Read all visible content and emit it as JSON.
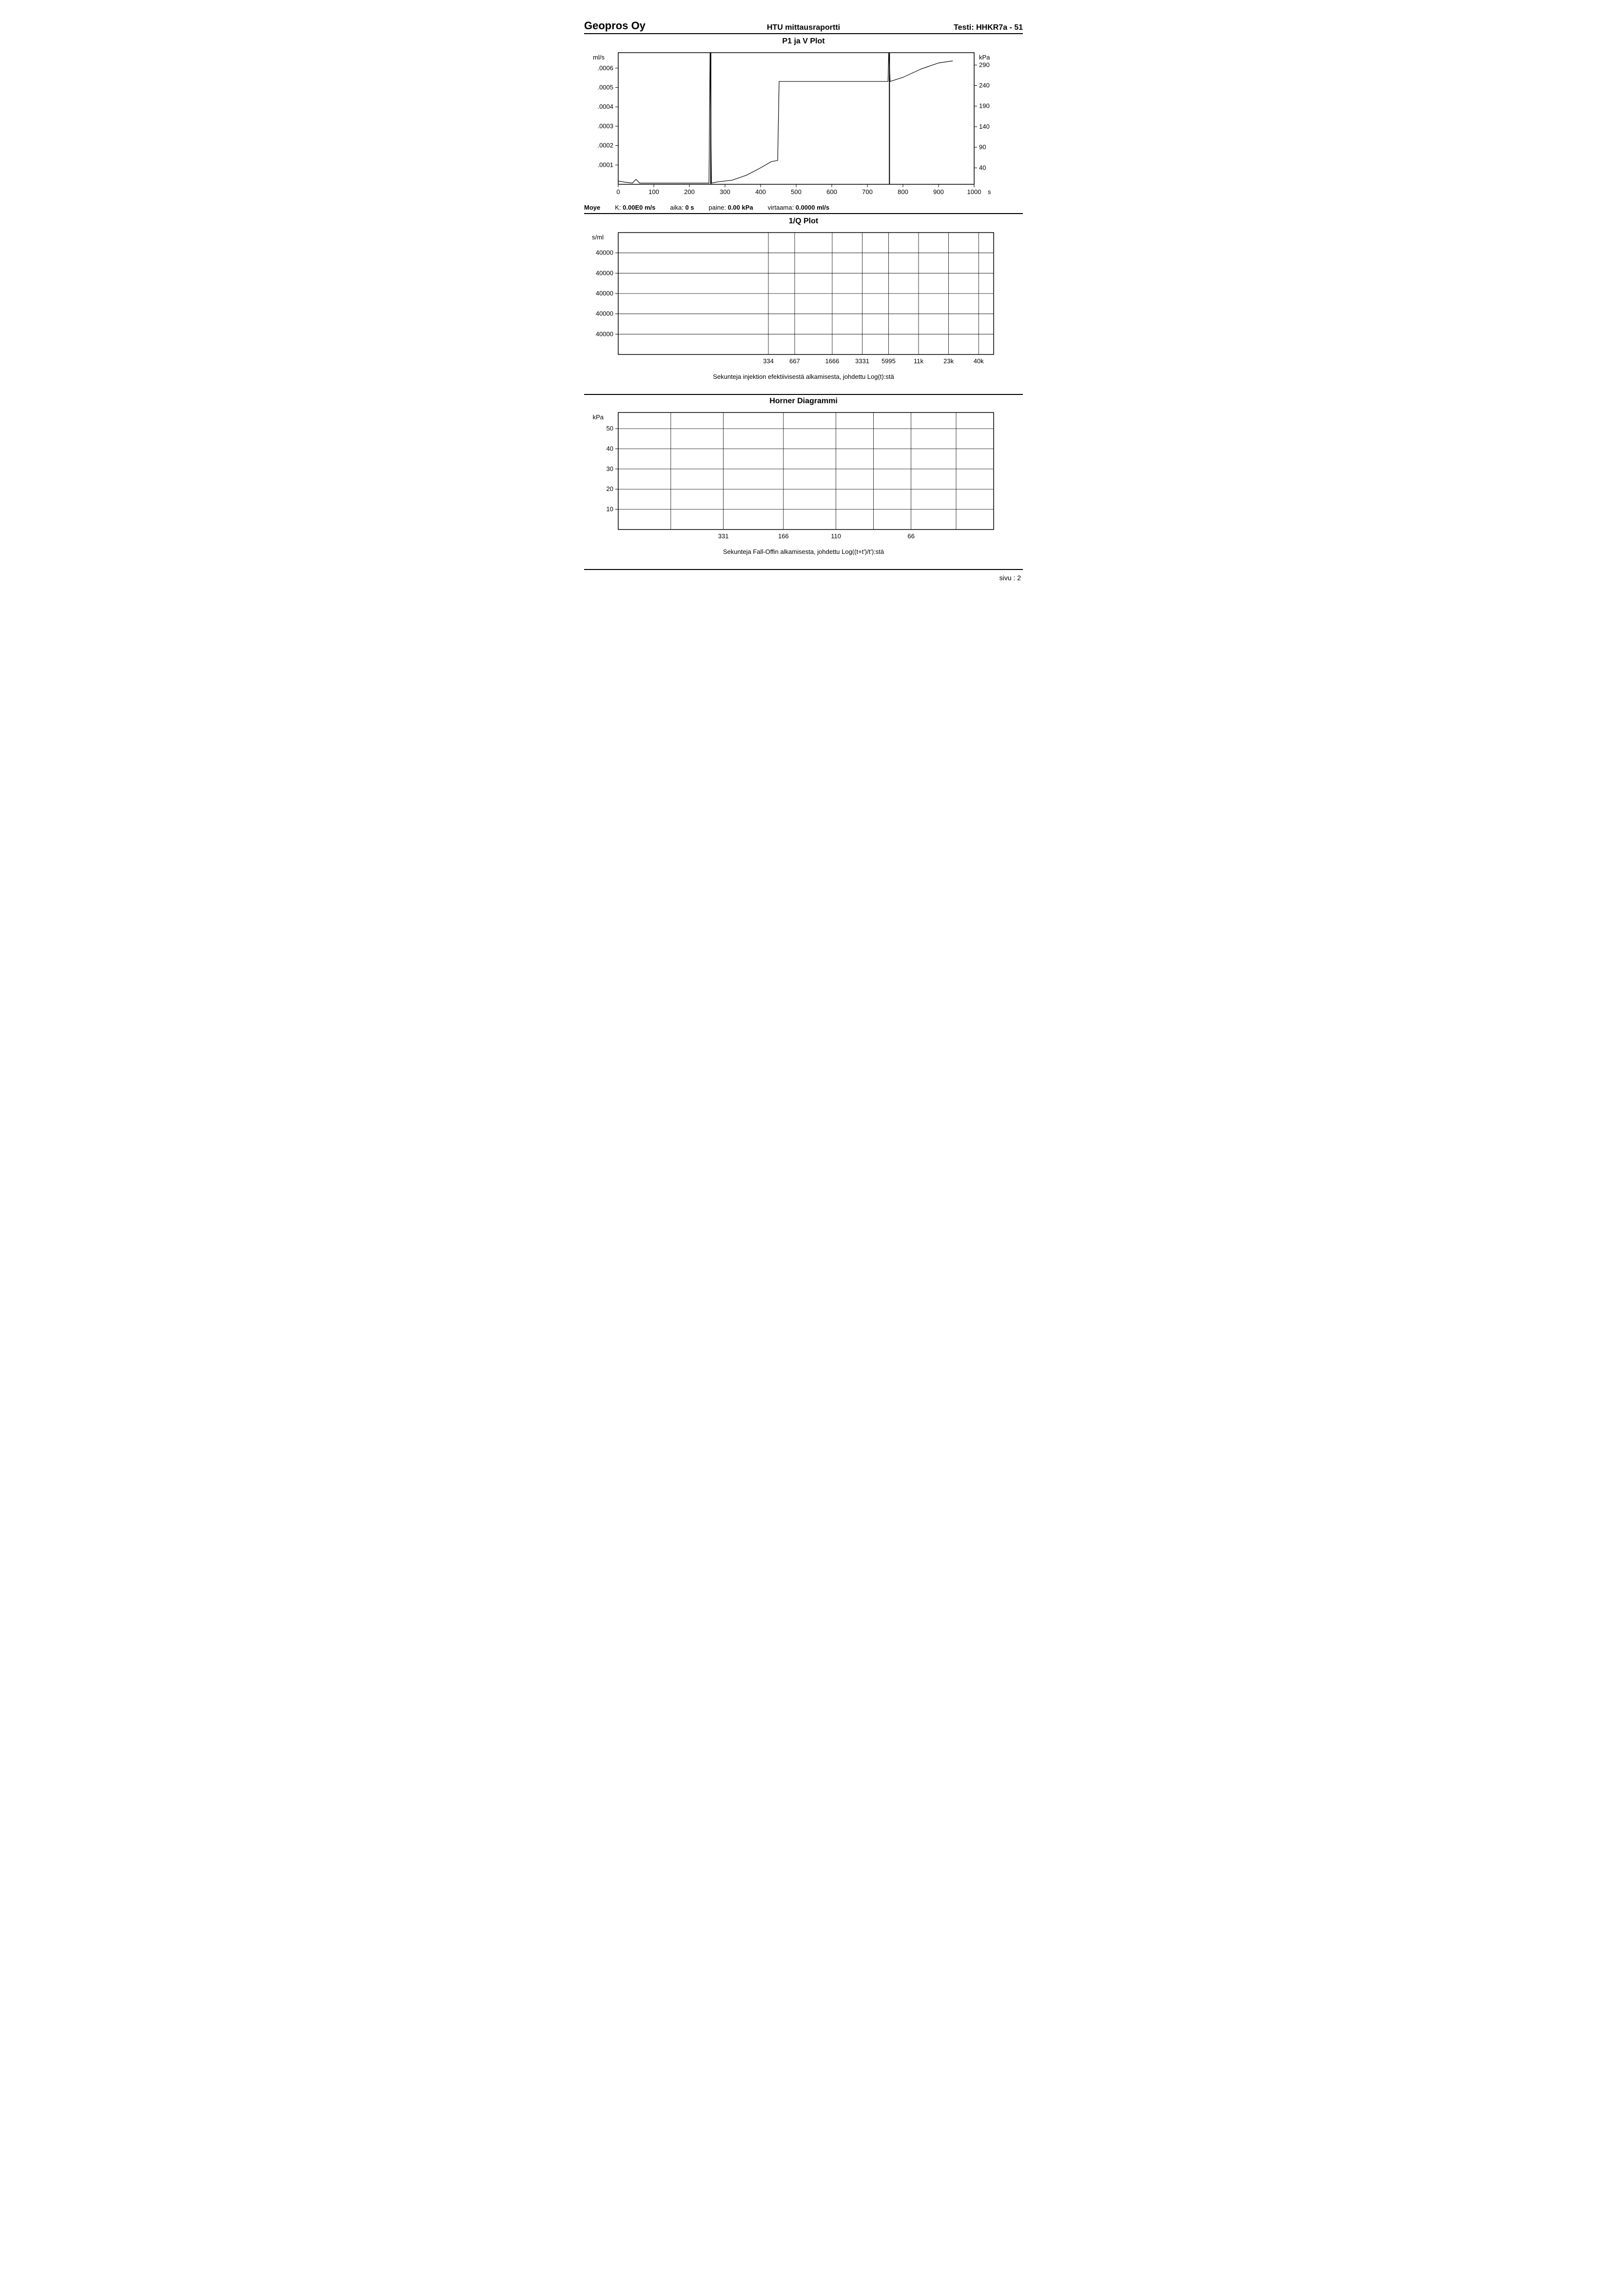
{
  "header": {
    "company": "Geopros Oy",
    "report": "HTU mittausraportti",
    "test_label": "Testi:",
    "test_id": "HHKR7a - 51"
  },
  "chart1": {
    "title": "P1 ja V Plot",
    "type": "line",
    "y_left_unit": "ml/s",
    "y_right_unit": "kPa",
    "x_unit": "s",
    "x_ticks": [
      0,
      100,
      200,
      300,
      400,
      500,
      600,
      700,
      800,
      900,
      1000
    ],
    "xlim": [
      0,
      1000
    ],
    "y_left_ticks": [
      ".0001",
      ".0002",
      ".0003",
      ".0004",
      ".0005",
      ".0006"
    ],
    "y_left_lim": [
      0,
      0.00068
    ],
    "y_right_ticks": [
      40,
      90,
      140,
      190,
      240,
      290
    ],
    "y_right_lim": [
      0,
      320
    ],
    "background_color": "#ffffff",
    "line_color": "#000000",
    "pressure_series": {
      "comment": "kPa vs s — low ~5, spike at ~260, step up ~450, spike at ~760, rise to ~300",
      "points": [
        [
          0,
          8
        ],
        [
          20,
          5
        ],
        [
          40,
          3
        ],
        [
          50,
          12
        ],
        [
          60,
          3
        ],
        [
          100,
          3
        ],
        [
          200,
          3
        ],
        [
          255,
          3
        ],
        [
          258,
          320
        ],
        [
          262,
          3
        ],
        [
          280,
          6
        ],
        [
          320,
          10
        ],
        [
          360,
          22
        ],
        [
          400,
          40
        ],
        [
          430,
          55
        ],
        [
          448,
          58
        ],
        [
          452,
          250
        ],
        [
          500,
          250
        ],
        [
          600,
          250
        ],
        [
          700,
          250
        ],
        [
          758,
          250
        ],
        [
          760,
          320
        ],
        [
          764,
          250
        ],
        [
          800,
          260
        ],
        [
          850,
          280
        ],
        [
          900,
          295
        ],
        [
          940,
          300
        ]
      ]
    },
    "status": {
      "moye_label": "Moye",
      "k_label": "K:",
      "k_value": "0.00E0 m/s",
      "aika_label": "aika:",
      "aika_value": "0 s",
      "paine_label": "paine:",
      "paine_value": "0.00 kPa",
      "virtaama_label": "virtaama:",
      "virtaama_value": "0.0000 ml/s"
    }
  },
  "chart2": {
    "title": "1/Q Plot",
    "type": "line",
    "y_unit": "s/ml",
    "y_ticks": [
      "40000",
      "40000",
      "40000",
      "40000",
      "40000"
    ],
    "x_ticks": [
      "334",
      "667",
      "1666",
      "3331",
      "5995",
      "11k",
      "23k",
      "40k"
    ],
    "background_color": "#ffffff",
    "grid_color": "#000000",
    "caption": "Sekunteja injektion efektiivisestä alkamisesta, johdettu Log(t):stä"
  },
  "chart3": {
    "title": "Horner Diagrammi",
    "type": "line",
    "y_unit": "kPa",
    "y_ticks": [
      10,
      20,
      30,
      40,
      50
    ],
    "ylim": [
      0,
      58
    ],
    "x_ticks": [
      "331",
      "166",
      "110",
      "66"
    ],
    "background_color": "#ffffff",
    "grid_color": "#000000",
    "caption": "Sekunteja Fall-Offin alkamisesta, johdettu Log((t+t')/t'):stä"
  },
  "footer": {
    "page_label": "sivu :",
    "page_number": "2"
  }
}
